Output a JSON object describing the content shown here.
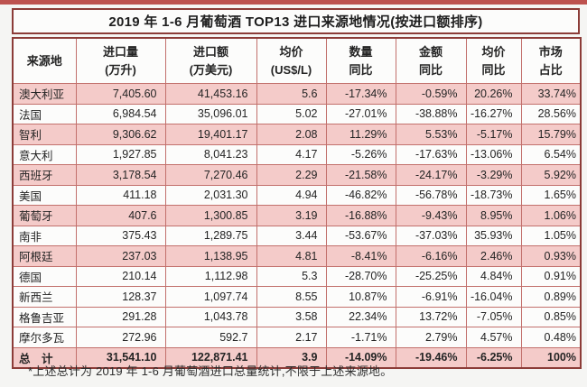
{
  "colors": {
    "top_strip": "#bd524f",
    "outer_border": "#8c3c38",
    "inner_border": "#c2706c",
    "highlight_row_bg": "#f4cbc9",
    "text": "#242424"
  },
  "chart_data": {
    "type": "table",
    "title": "2019 年 1-6 月葡萄酒 TOP13 进口来源地情况(按进口额排序)",
    "footnote": "*上述总计为 2019 年 1-6 月葡萄酒进口总量统计,不限于上述来源地。",
    "columns": [
      {
        "id": "origin",
        "label": "来源地",
        "label_lines": [
          "来源地"
        ]
      },
      {
        "id": "volume",
        "label": "进口量(万升)",
        "label_lines": [
          "进口量",
          "(万升)"
        ]
      },
      {
        "id": "value",
        "label": "进口额(万美元)",
        "label_lines": [
          "进口额",
          "(万美元)"
        ]
      },
      {
        "id": "price",
        "label": "均价(US$/L)",
        "label_lines": [
          "均价",
          "(US$/L)"
        ]
      },
      {
        "id": "qty_yoy",
        "label": "数量同比",
        "label_lines": [
          "数量",
          "同比"
        ]
      },
      {
        "id": "amt_yoy",
        "label": "金额同比",
        "label_lines": [
          "金额",
          "同比"
        ]
      },
      {
        "id": "price_yoy",
        "label": "均价同比",
        "label_lines": [
          "均价",
          "同比"
        ]
      },
      {
        "id": "share",
        "label": "市场占比",
        "label_lines": [
          "市场",
          "占比"
        ]
      }
    ],
    "rows": [
      {
        "origin": "澳大利亚",
        "volume": "7,405.60",
        "value": "41,453.16",
        "price": "5.6",
        "qty_yoy": "-17.34%",
        "amt_yoy": "-0.59%",
        "price_yoy": "20.26%",
        "share": "33.74%",
        "highlight": true,
        "total": false
      },
      {
        "origin": "法国",
        "volume": "6,984.54",
        "value": "35,096.01",
        "price": "5.02",
        "qty_yoy": "-27.01%",
        "amt_yoy": "-38.88%",
        "price_yoy": "-16.27%",
        "share": "28.56%",
        "highlight": false,
        "total": false
      },
      {
        "origin": "智利",
        "volume": "9,306.62",
        "value": "19,401.17",
        "price": "2.08",
        "qty_yoy": "11.29%",
        "amt_yoy": "5.53%",
        "price_yoy": "-5.17%",
        "share": "15.79%",
        "highlight": true,
        "total": false
      },
      {
        "origin": "意大利",
        "volume": "1,927.85",
        "value": "8,041.23",
        "price": "4.17",
        "qty_yoy": "-5.26%",
        "amt_yoy": "-17.63%",
        "price_yoy": "-13.06%",
        "share": "6.54%",
        "highlight": false,
        "total": false
      },
      {
        "origin": "西班牙",
        "volume": "3,178.54",
        "value": "7,270.46",
        "price": "2.29",
        "qty_yoy": "-21.58%",
        "amt_yoy": "-24.17%",
        "price_yoy": "-3.29%",
        "share": "5.92%",
        "highlight": true,
        "total": false
      },
      {
        "origin": "美国",
        "volume": "411.18",
        "value": "2,031.30",
        "price": "4.94",
        "qty_yoy": "-46.82%",
        "amt_yoy": "-56.78%",
        "price_yoy": "-18.73%",
        "share": "1.65%",
        "highlight": false,
        "total": false
      },
      {
        "origin": "葡萄牙",
        "volume": "407.6",
        "value": "1,300.85",
        "price": "3.19",
        "qty_yoy": "-16.88%",
        "amt_yoy": "-9.43%",
        "price_yoy": "8.95%",
        "share": "1.06%",
        "highlight": true,
        "total": false
      },
      {
        "origin": "南非",
        "volume": "375.43",
        "value": "1,289.75",
        "price": "3.44",
        "qty_yoy": "-53.67%",
        "amt_yoy": "-37.03%",
        "price_yoy": "35.93%",
        "share": "1.05%",
        "highlight": false,
        "total": false
      },
      {
        "origin": "阿根廷",
        "volume": "237.03",
        "value": "1,138.95",
        "price": "4.81",
        "qty_yoy": "-8.41%",
        "amt_yoy": "-6.16%",
        "price_yoy": "2.46%",
        "share": "0.93%",
        "highlight": true,
        "total": false
      },
      {
        "origin": "德国",
        "volume": "210.14",
        "value": "1,112.98",
        "price": "5.3",
        "qty_yoy": "-28.70%",
        "amt_yoy": "-25.25%",
        "price_yoy": "4.84%",
        "share": "0.91%",
        "highlight": false,
        "total": false
      },
      {
        "origin": "新西兰",
        "volume": "128.37",
        "value": "1,097.74",
        "price": "8.55",
        "qty_yoy": "10.87%",
        "amt_yoy": "-6.91%",
        "price_yoy": "-16.04%",
        "share": "0.89%",
        "highlight": false,
        "total": false
      },
      {
        "origin": "格鲁吉亚",
        "volume": "291.28",
        "value": "1,043.78",
        "price": "3.58",
        "qty_yoy": "22.34%",
        "amt_yoy": "13.72%",
        "price_yoy": "-7.05%",
        "share": "0.85%",
        "highlight": false,
        "total": false
      },
      {
        "origin": "摩尔多瓦",
        "volume": "272.96",
        "value": "592.7",
        "price": "2.17",
        "qty_yoy": "-1.71%",
        "amt_yoy": "2.79%",
        "price_yoy": "4.57%",
        "share": "0.48%",
        "highlight": false,
        "total": false
      },
      {
        "origin": "总　计",
        "volume": "31,541.10",
        "value": "122,871.41",
        "price": "3.9",
        "qty_yoy": "-14.09%",
        "amt_yoy": "-19.46%",
        "price_yoy": "-6.25%",
        "share": "100%",
        "highlight": true,
        "total": true
      }
    ]
  }
}
